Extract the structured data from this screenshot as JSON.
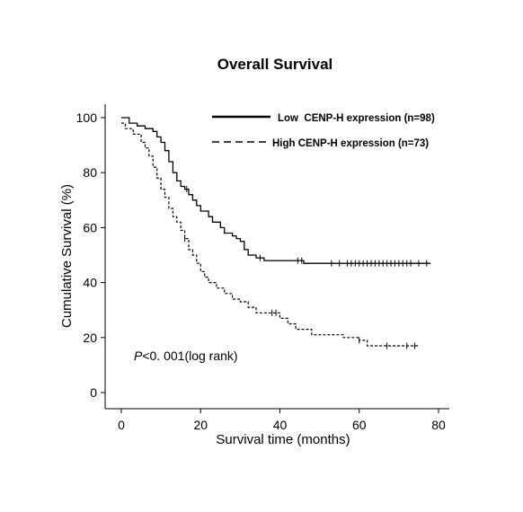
{
  "chart_data": {
    "type": "line",
    "title": "Overall Survival",
    "xlabel": "Survival time (months)",
    "ylabel": "Cumulative Survival (%)",
    "xlim": [
      -5,
      80
    ],
    "ylim": [
      -5,
      103
    ],
    "x_ticks": [
      0,
      20,
      40,
      60,
      80
    ],
    "y_ticks": [
      0,
      20,
      40,
      60,
      80,
      100
    ],
    "legend_position": "top-right",
    "annotation": {
      "italic_part": "P",
      "rest": "<0. 001(log rank)"
    },
    "series": [
      {
        "name": "Low  CENP-H expression (n=98)",
        "style": "solid",
        "color": "#000000",
        "points": [
          [
            0,
            100
          ],
          [
            2,
            100
          ],
          [
            2,
            98
          ],
          [
            4,
            98
          ],
          [
            4,
            97
          ],
          [
            6,
            97
          ],
          [
            6,
            96
          ],
          [
            8,
            96
          ],
          [
            8,
            95
          ],
          [
            9,
            95
          ],
          [
            9,
            93
          ],
          [
            10,
            93
          ],
          [
            10,
            91
          ],
          [
            11,
            91
          ],
          [
            11,
            88
          ],
          [
            12,
            88
          ],
          [
            12,
            84
          ],
          [
            13,
            84
          ],
          [
            13,
            80
          ],
          [
            14,
            80
          ],
          [
            14,
            77
          ],
          [
            15,
            77
          ],
          [
            15,
            75
          ],
          [
            16,
            75
          ],
          [
            16,
            74
          ],
          [
            17,
            74
          ],
          [
            17,
            72
          ],
          [
            18,
            72
          ],
          [
            18,
            70
          ],
          [
            19,
            70
          ],
          [
            19,
            68
          ],
          [
            20,
            68
          ],
          [
            20,
            66
          ],
          [
            22,
            66
          ],
          [
            22,
            64
          ],
          [
            23,
            64
          ],
          [
            23,
            62
          ],
          [
            25,
            62
          ],
          [
            25,
            60
          ],
          [
            26,
            60
          ],
          [
            26,
            58
          ],
          [
            28,
            58
          ],
          [
            28,
            57
          ],
          [
            29,
            57
          ],
          [
            29,
            56
          ],
          [
            30,
            56
          ],
          [
            30,
            55
          ],
          [
            31,
            55
          ],
          [
            31,
            52
          ],
          [
            32,
            52
          ],
          [
            32,
            50
          ],
          [
            34,
            50
          ],
          [
            34,
            49
          ],
          [
            36,
            49
          ],
          [
            36,
            48
          ],
          [
            46,
            48
          ],
          [
            46,
            47
          ],
          [
            78,
            47
          ]
        ],
        "censor_x": [
          16.5,
          35,
          44.5,
          45.5,
          53,
          55,
          57,
          58,
          59,
          60,
          61,
          62,
          63,
          64,
          65,
          66,
          67,
          68,
          69,
          70,
          71,
          72,
          73,
          75,
          77
        ]
      },
      {
        "name": "High CENP-H expression (n=73)",
        "style": "dashed",
        "color": "#000000",
        "points": [
          [
            0,
            98
          ],
          [
            1,
            98
          ],
          [
            1,
            96
          ],
          [
            3,
            96
          ],
          [
            3,
            94
          ],
          [
            5,
            94
          ],
          [
            5,
            91
          ],
          [
            6,
            91
          ],
          [
            6,
            89
          ],
          [
            7,
            89
          ],
          [
            7,
            86
          ],
          [
            8,
            86
          ],
          [
            8,
            82
          ],
          [
            9,
            82
          ],
          [
            9,
            78
          ],
          [
            10,
            78
          ],
          [
            10,
            74
          ],
          [
            11,
            74
          ],
          [
            11,
            71
          ],
          [
            12,
            71
          ],
          [
            12,
            67
          ],
          [
            13,
            67
          ],
          [
            13,
            64
          ],
          [
            14,
            64
          ],
          [
            14,
            62
          ],
          [
            15,
            62
          ],
          [
            15,
            59
          ],
          [
            16,
            59
          ],
          [
            16,
            56
          ],
          [
            17,
            56
          ],
          [
            17,
            52
          ],
          [
            18,
            52
          ],
          [
            18,
            50
          ],
          [
            19,
            50
          ],
          [
            19,
            47
          ],
          [
            20,
            47
          ],
          [
            20,
            44
          ],
          [
            21,
            44
          ],
          [
            21,
            42
          ],
          [
            22,
            42
          ],
          [
            22,
            40
          ],
          [
            24,
            40
          ],
          [
            24,
            38
          ],
          [
            26,
            38
          ],
          [
            26,
            36
          ],
          [
            28,
            36
          ],
          [
            28,
            34
          ],
          [
            30,
            34
          ],
          [
            30,
            33
          ],
          [
            32,
            33
          ],
          [
            32,
            31
          ],
          [
            34,
            31
          ],
          [
            34,
            29
          ],
          [
            40,
            29
          ],
          [
            40,
            27
          ],
          [
            42,
            27
          ],
          [
            42,
            25
          ],
          [
            44,
            25
          ],
          [
            44,
            23
          ],
          [
            48,
            23
          ],
          [
            48,
            21
          ],
          [
            56,
            21
          ],
          [
            56,
            20
          ],
          [
            60,
            20
          ],
          [
            60,
            19
          ],
          [
            62,
            19
          ],
          [
            62,
            17
          ],
          [
            75,
            17
          ]
        ],
        "censor_x": [
          16,
          38,
          39,
          60,
          67,
          72,
          74
        ]
      }
    ]
  }
}
